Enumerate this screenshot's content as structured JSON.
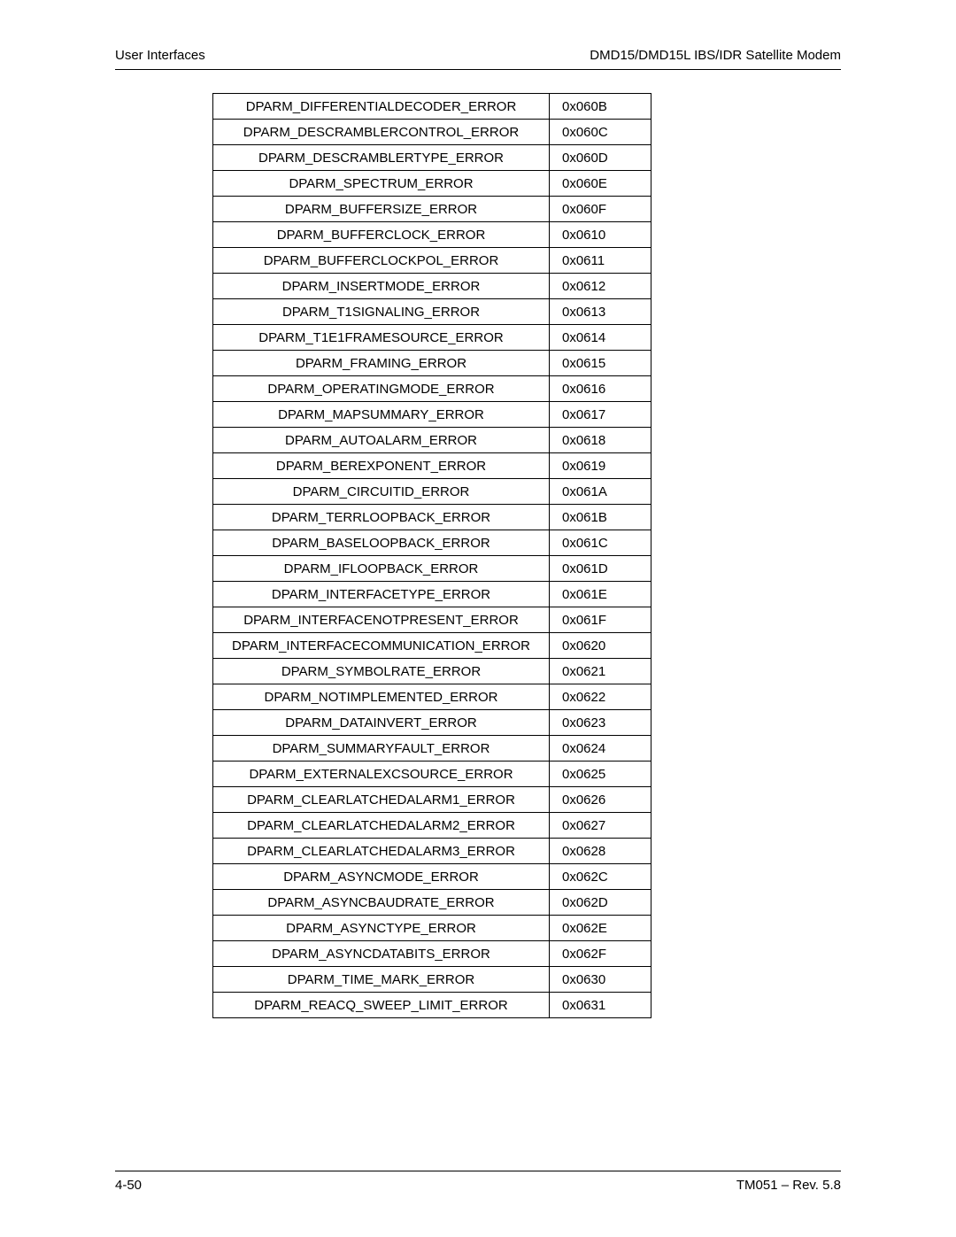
{
  "header": {
    "left": "User Interfaces",
    "right": "DMD15/DMD15L IBS/IDR Satellite Modem"
  },
  "footer": {
    "left": "4-50",
    "right": "TM051 – Rev. 5.8"
  },
  "table": {
    "rows": [
      {
        "name": "DPARM_DIFFERENTIALDECODER_ERROR",
        "code": "0x060B"
      },
      {
        "name": "DPARM_DESCRAMBLERCONTROL_ERROR",
        "code": "0x060C"
      },
      {
        "name": "DPARM_DESCRAMBLERTYPE_ERROR",
        "code": "0x060D"
      },
      {
        "name": "DPARM_SPECTRUM_ERROR",
        "code": "0x060E"
      },
      {
        "name": "DPARM_BUFFERSIZE_ERROR",
        "code": "0x060F"
      },
      {
        "name": "DPARM_BUFFERCLOCK_ERROR",
        "code": "0x0610"
      },
      {
        "name": "DPARM_BUFFERCLOCKPOL_ERROR",
        "code": "0x0611"
      },
      {
        "name": "DPARM_INSERTMODE_ERROR",
        "code": "0x0612"
      },
      {
        "name": "DPARM_T1SIGNALING_ERROR",
        "code": "0x0613"
      },
      {
        "name": "DPARM_T1E1FRAMESOURCE_ERROR",
        "code": "0x0614"
      },
      {
        "name": "DPARM_FRAMING_ERROR",
        "code": "0x0615"
      },
      {
        "name": "DPARM_OPERATINGMODE_ERROR",
        "code": "0x0616"
      },
      {
        "name": "DPARM_MAPSUMMARY_ERROR",
        "code": "0x0617"
      },
      {
        "name": "DPARM_AUTOALARM_ERROR",
        "code": "0x0618"
      },
      {
        "name": "DPARM_BEREXPONENT_ERROR",
        "code": "0x0619"
      },
      {
        "name": "DPARM_CIRCUITID_ERROR",
        "code": "0x061A"
      },
      {
        "name": "DPARM_TERRLOOPBACK_ERROR",
        "code": "0x061B"
      },
      {
        "name": "DPARM_BASELOOPBACK_ERROR",
        "code": "0x061C"
      },
      {
        "name": "DPARM_IFLOOPBACK_ERROR",
        "code": "0x061D"
      },
      {
        "name": "DPARM_INTERFACETYPE_ERROR",
        "code": "0x061E"
      },
      {
        "name": "DPARM_INTERFACENOTPRESENT_ERROR",
        "code": "0x061F"
      },
      {
        "name": "DPARM_INTERFACECOMMUNICATION_ERROR",
        "code": "0x0620"
      },
      {
        "name": "DPARM_SYMBOLRATE_ERROR",
        "code": "0x0621"
      },
      {
        "name": "DPARM_NOTIMPLEMENTED_ERROR",
        "code": "0x0622"
      },
      {
        "name": "DPARM_DATAINVERT_ERROR",
        "code": "0x0623"
      },
      {
        "name": "DPARM_SUMMARYFAULT_ERROR",
        "code": "0x0624"
      },
      {
        "name": "DPARM_EXTERNALEXCSOURCE_ERROR",
        "code": "0x0625"
      },
      {
        "name": "DPARM_CLEARLATCHEDALARM1_ERROR",
        "code": "0x0626"
      },
      {
        "name": "DPARM_CLEARLATCHEDALARM2_ERROR",
        "code": "0x0627"
      },
      {
        "name": "DPARM_CLEARLATCHEDALARM3_ERROR",
        "code": "0x0628"
      },
      {
        "name": "DPARM_ASYNCMODE_ERROR",
        "code": "0x062C"
      },
      {
        "name": "DPARM_ASYNCBAUDRATE_ERROR",
        "code": "0x062D"
      },
      {
        "name": "DPARM_ASYNCTYPE_ERROR",
        "code": "0x062E"
      },
      {
        "name": "DPARM_ASYNCDATABITS_ERROR",
        "code": "0x062F"
      },
      {
        "name": "DPARM_TIME_MARK_ERROR",
        "code": "0x0630"
      },
      {
        "name": "DPARM_REACQ_SWEEP_LIMIT_ERROR",
        "code": "0x0631"
      }
    ]
  }
}
